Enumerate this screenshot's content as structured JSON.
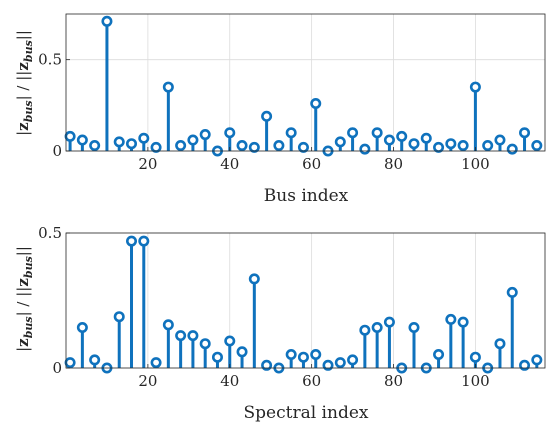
{
  "chart_data": [
    {
      "type": "stem",
      "xlabel": "Bus index",
      "ylabel": "|z_bus| / ||z_bus||",
      "xlim": [
        0,
        117
      ],
      "ylim": [
        0,
        0.75
      ],
      "xticks": [
        20,
        40,
        60,
        80,
        100
      ],
      "yticks": [
        0,
        0.5
      ],
      "grid": true,
      "color": "#0f72bd",
      "values": [
        0.08,
        0.06,
        0.03,
        0.71,
        0.05,
        0.04,
        0.07,
        0.02,
        0.35,
        0.03,
        0.06,
        0.09,
        0.0,
        0.1,
        0.03,
        0.02,
        0.19,
        0.03,
        0.1,
        0.02,
        0.26,
        0.0,
        0.05,
        0.1,
        0.01,
        0.1,
        0.06,
        0.08,
        0.04,
        0.07,
        0.02,
        0.04,
        0.03,
        0.35,
        0.03,
        0.06,
        0.01,
        0.1,
        0.03
      ],
      "x": [
        1,
        4,
        7,
        10,
        13,
        16,
        19,
        22,
        25,
        28,
        31,
        34,
        37,
        40,
        43,
        46,
        49,
        52,
        55,
        58,
        61,
        64,
        67,
        70,
        73,
        76,
        79,
        82,
        85,
        88,
        91,
        94,
        97,
        100,
        103,
        106,
        109,
        112,
        115
      ]
    },
    {
      "type": "stem",
      "xlabel": "Spectral index",
      "ylabel": "|z~_bus| / ||z~_bus||",
      "xlim": [
        0,
        117
      ],
      "ylim": [
        0,
        0.5
      ],
      "xticks": [
        20,
        40,
        60,
        80,
        100
      ],
      "yticks": [
        0,
        0.5
      ],
      "grid": true,
      "color": "#0f72bd",
      "values": [
        0.02,
        0.15,
        0.03,
        0.0,
        0.19,
        0.47,
        0.47,
        0.02,
        0.16,
        0.12,
        0.12,
        0.09,
        0.04,
        0.1,
        0.06,
        0.33,
        0.01,
        0.0,
        0.05,
        0.04,
        0.05,
        0.01,
        0.02,
        0.03,
        0.14,
        0.15,
        0.17,
        0.0,
        0.15,
        0.0,
        0.05,
        0.18,
        0.17,
        0.04,
        0.0,
        0.09,
        0.28,
        0.01,
        0.03
      ],
      "x": [
        1,
        4,
        7,
        10,
        13,
        16,
        19,
        22,
        25,
        28,
        31,
        34,
        37,
        40,
        43,
        46,
        49,
        52,
        55,
        58,
        61,
        64,
        67,
        70,
        73,
        76,
        79,
        82,
        85,
        88,
        91,
        94,
        97,
        100,
        103,
        106,
        109,
        112,
        115
      ]
    }
  ]
}
